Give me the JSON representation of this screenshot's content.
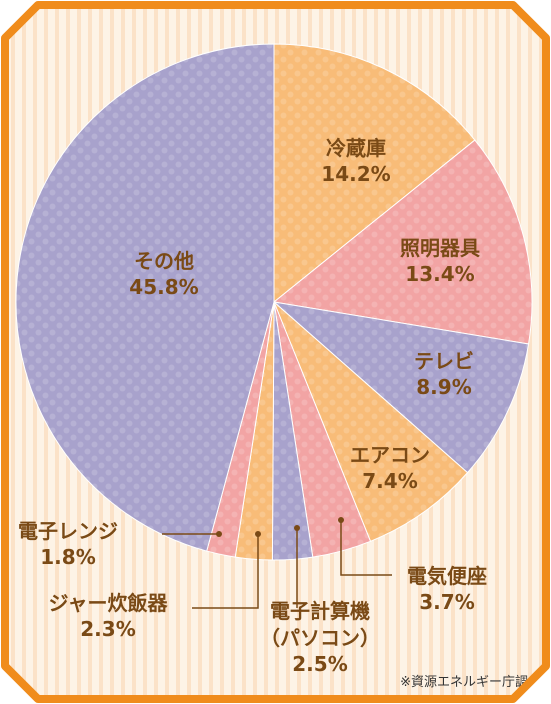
{
  "chart_data": {
    "type": "pie",
    "categories": [
      "冷蔵庫",
      "照明器具",
      "テレビ",
      "エアコン",
      "電気便座",
      "電子計算機（パソコン）",
      "ジャー炊飯器",
      "電子レンジ",
      "その他"
    ],
    "values": [
      14.2,
      13.4,
      8.9,
      7.4,
      3.7,
      2.5,
      2.3,
      1.8,
      45.8
    ],
    "value_labels": [
      "14.2%",
      "13.4%",
      "8.9%",
      "7.4%",
      "3.7%",
      "2.5%",
      "2.3%",
      "1.8%",
      "45.8%"
    ],
    "colors": [
      "#f8bc78",
      "#f2a4a4",
      "#a8a2cc",
      "#f8bc78",
      "#f2a4a4",
      "#a8a2cc",
      "#f8bc78",
      "#f2a4a4",
      "#a8a2cc"
    ],
    "source_note": "※資源エネルギー庁調べ"
  },
  "style": {
    "frame_color": "#f08c1c",
    "background_color": "#fdf3e6",
    "stripe_color": "#fbe2c8",
    "label_color": "#7a4a16",
    "leader_color": "#7a4a16"
  }
}
